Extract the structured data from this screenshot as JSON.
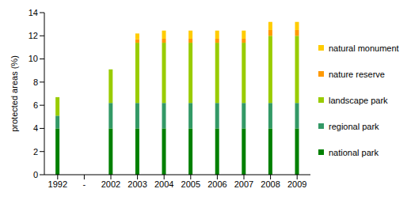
{
  "chart_data": {
    "type": "bar",
    "stacked": true,
    "grid": false,
    "legend": "right",
    "y_label": "protected areas (%)",
    "categories": [
      "1992",
      "-",
      "2002",
      "2003",
      "2004",
      "2005",
      "2006",
      "2007",
      "2008",
      "2009"
    ],
    "ylim": [
      0,
      14
    ],
    "yticks": [
      0,
      2,
      4,
      6,
      8,
      10,
      12,
      14
    ],
    "series": [
      {
        "name": "national park",
        "color": "#008000",
        "values": [
          4.0,
          null,
          4.0,
          4.0,
          4.0,
          4.0,
          4.0,
          4.0,
          4.0,
          4.0
        ]
      },
      {
        "name": "regional park",
        "color": "#339966",
        "values": [
          1.1,
          null,
          2.2,
          2.2,
          2.2,
          2.2,
          2.2,
          2.2,
          2.2,
          2.2
        ]
      },
      {
        "name": "landscape park",
        "color": "#99CC00",
        "values": [
          1.6,
          null,
          2.9,
          5.2,
          5.2,
          5.2,
          5.2,
          5.2,
          5.8,
          5.8
        ]
      },
      {
        "name": "nature reserve",
        "color": "#FF9900",
        "values": [
          0,
          null,
          0,
          0.3,
          0.35,
          0.35,
          0.35,
          0.35,
          0.5,
          0.5
        ]
      },
      {
        "name": "natural monument",
        "color": "#FFCC00",
        "values": [
          0,
          null,
          0,
          0.5,
          0.7,
          0.7,
          0.7,
          0.7,
          0.7,
          0.7
        ]
      }
    ]
  }
}
